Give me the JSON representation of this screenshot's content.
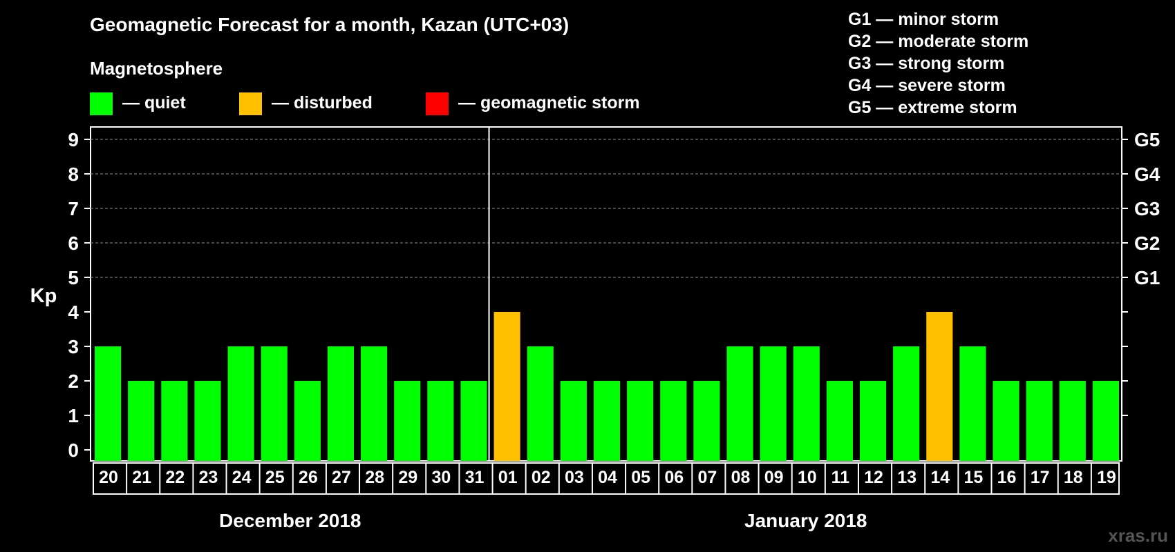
{
  "title": "Geomagnetic Forecast for a month, Kazan (UTC+03)",
  "legend": {
    "heading": "Magnetosphere",
    "items": [
      {
        "label": "— quiet",
        "color": "#00ff00"
      },
      {
        "label": "— disturbed",
        "color": "#ffc000"
      },
      {
        "label": "— geomagnetic storm",
        "color": "#ff0000"
      }
    ]
  },
  "storm_scale": [
    "G1 — minor storm",
    "G2 — moderate storm",
    "G3 — strong storm",
    "G4 — severe storm",
    "G5 — extreme storm"
  ],
  "watermark": "xras.ru",
  "chart_data": {
    "type": "bar",
    "ylabel": "Kp",
    "ylim": [
      0,
      9
    ],
    "yticks": [
      0,
      1,
      2,
      3,
      4,
      5,
      6,
      7,
      8,
      9
    ],
    "right_axis_labels": [
      {
        "kp": 5,
        "label": "G1"
      },
      {
        "kp": 6,
        "label": "G2"
      },
      {
        "kp": 7,
        "label": "G3"
      },
      {
        "kp": 8,
        "label": "G4"
      },
      {
        "kp": 9,
        "label": "G5"
      }
    ],
    "grid": "dashed horizontal at Kp 5-9",
    "categories": [
      "20",
      "21",
      "22",
      "23",
      "24",
      "25",
      "26",
      "27",
      "28",
      "29",
      "30",
      "31",
      "01",
      "02",
      "03",
      "04",
      "05",
      "06",
      "07",
      "08",
      "09",
      "10",
      "11",
      "12",
      "13",
      "14",
      "15",
      "16",
      "17",
      "18",
      "19"
    ],
    "values": [
      3,
      2,
      2,
      2,
      3,
      3,
      2,
      3,
      3,
      2,
      2,
      2,
      4,
      3,
      2,
      2,
      2,
      2,
      2,
      3,
      3,
      3,
      2,
      2,
      3,
      4,
      3,
      2,
      2,
      2,
      2
    ],
    "status": [
      "quiet",
      "quiet",
      "quiet",
      "quiet",
      "quiet",
      "quiet",
      "quiet",
      "quiet",
      "quiet",
      "quiet",
      "quiet",
      "quiet",
      "disturbed",
      "quiet",
      "quiet",
      "quiet",
      "quiet",
      "quiet",
      "quiet",
      "quiet",
      "quiet",
      "quiet",
      "quiet",
      "quiet",
      "quiet",
      "disturbed",
      "quiet",
      "quiet",
      "quiet",
      "quiet",
      "quiet"
    ],
    "groups": [
      {
        "label": "December 2018",
        "count": 12
      },
      {
        "label": "January 2018",
        "count": 19
      }
    ],
    "colors": {
      "quiet": "#00ff00",
      "disturbed": "#ffc000",
      "storm": "#ff0000"
    }
  }
}
